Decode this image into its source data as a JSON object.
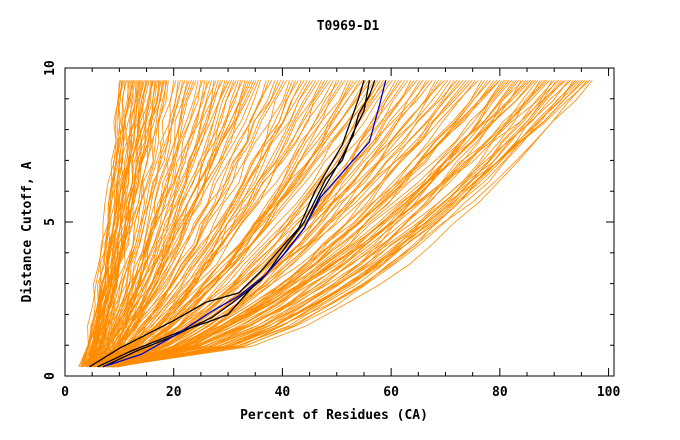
{
  "chart_data": {
    "type": "line",
    "title": "T0969-D1",
    "xlabel": "Percent of Residues (CA)",
    "ylabel": "Distance Cutoff, A",
    "xlim": [
      0,
      101
    ],
    "ylim": [
      0,
      10
    ],
    "x_ticks": [
      "0",
      "20",
      "40",
      "60",
      "80",
      "100"
    ],
    "y_ticks": [
      "0",
      "5",
      "10"
    ],
    "grid": false,
    "colors": {
      "background": "#ffffff",
      "models": "#ff8c00",
      "highlight_black": "#000000",
      "highlight_blue": "#0000cd",
      "axis": "#000000"
    },
    "series": [
      {
        "name": "highlight-black-1",
        "color": "#000000",
        "points": [
          [
            4.5,
            0.3
          ],
          [
            10,
            0.9
          ],
          [
            20,
            1.8
          ],
          [
            26,
            2.4
          ],
          [
            32,
            2.7
          ],
          [
            36,
            3.4
          ],
          [
            40,
            4.2
          ],
          [
            43,
            4.8
          ],
          [
            46,
            6.0
          ],
          [
            51,
            7.5
          ],
          [
            53,
            8.5
          ],
          [
            54,
            9.0
          ],
          [
            55,
            9.6
          ]
        ]
      },
      {
        "name": "highlight-black-2",
        "color": "#000000",
        "points": [
          [
            6,
            0.3
          ],
          [
            12,
            0.8
          ],
          [
            22,
            1.5
          ],
          [
            27,
            1.8
          ],
          [
            30,
            2.0
          ],
          [
            34,
            2.8
          ],
          [
            37,
            3.3
          ],
          [
            41,
            4.3
          ],
          [
            44,
            5.0
          ],
          [
            48,
            6.4
          ],
          [
            51,
            7.0
          ],
          [
            53,
            7.9
          ],
          [
            55,
            8.6
          ],
          [
            56,
            9.6
          ]
        ]
      },
      {
        "name": "highlight-black-3",
        "color": "#000000",
        "points": [
          [
            7,
            0.3
          ],
          [
            13,
            0.8
          ],
          [
            20,
            1.3
          ],
          [
            27,
            1.9
          ],
          [
            31,
            2.4
          ],
          [
            36,
            3.1
          ],
          [
            40,
            3.9
          ],
          [
            44,
            4.8
          ],
          [
            47,
            5.9
          ],
          [
            50,
            6.8
          ],
          [
            53,
            7.8
          ],
          [
            54,
            8.5
          ],
          [
            56,
            9.1
          ],
          [
            57,
            9.6
          ]
        ]
      },
      {
        "name": "highlight-blue",
        "color": "#0000cd",
        "points": [
          [
            7,
            0.3
          ],
          [
            14,
            0.7
          ],
          [
            21,
            1.4
          ],
          [
            27,
            2.1
          ],
          [
            32,
            2.6
          ],
          [
            37,
            3.3
          ],
          [
            41,
            4.1
          ],
          [
            44,
            4.8
          ],
          [
            47,
            5.8
          ],
          [
            51,
            6.6
          ],
          [
            56,
            7.6
          ],
          [
            58,
            8.9
          ],
          [
            59,
            9.6
          ]
        ]
      }
    ],
    "model_bundles": [
      {
        "name": "bundle-1",
        "count": 42,
        "x_at_bottom": [
          2.5,
          5.5
        ],
        "x_at_top": [
          10,
          19
        ],
        "curvature": 0.35,
        "color": "#ff8c00"
      },
      {
        "name": "bundle-2",
        "count": 40,
        "x_at_bottom": [
          3,
          8
        ],
        "x_at_top": [
          20,
          36
        ],
        "curvature": 0.4,
        "color": "#ff8c00"
      },
      {
        "name": "bundle-3",
        "count": 40,
        "x_at_bottom": [
          4,
          9
        ],
        "x_at_top": [
          37,
          58
        ],
        "curvature": 0.5,
        "color": "#ff8c00"
      },
      {
        "name": "bundle-4",
        "count": 40,
        "x_at_bottom": [
          5,
          10
        ],
        "x_at_top": [
          58,
          80
        ],
        "curvature": 0.6,
        "color": "#ff8c00"
      },
      {
        "name": "bundle-5",
        "count": 40,
        "x_at_bottom": [
          6,
          10
        ],
        "x_at_top": [
          80,
          97
        ],
        "curvature": 0.7,
        "color": "#ff8c00"
      }
    ]
  }
}
